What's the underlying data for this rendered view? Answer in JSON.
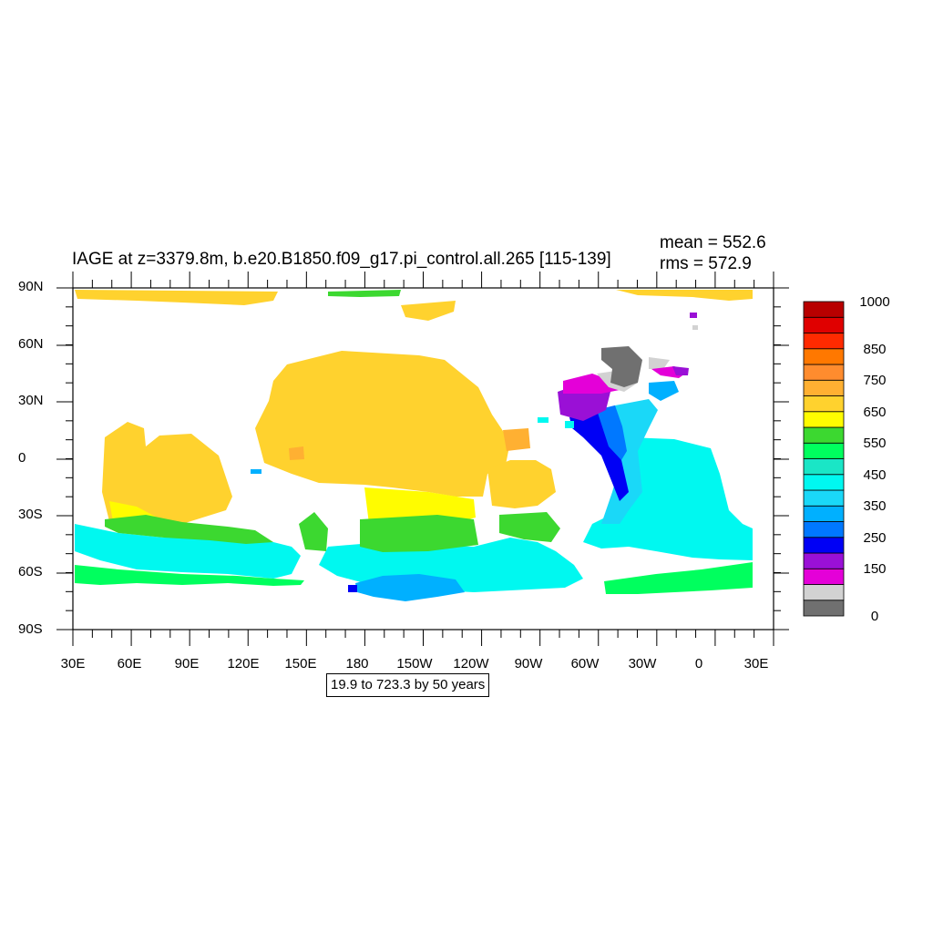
{
  "title": "IAGE at z=3379.8m, b.e20.B1850.f09_g17.pi_control.all.265 [115-139]",
  "stats": {
    "mean": "mean = 552.6",
    "rms": "rms = 572.9"
  },
  "subtitle_box": "19.9 to 723.3 by 50 years",
  "axes": {
    "lat_ticks": [
      "90N",
      "60N",
      "30N",
      "0",
      "30S",
      "60S",
      "90S"
    ],
    "lon_ticks": [
      "30E",
      "60E",
      "90E",
      "120E",
      "150E",
      "180",
      "150W",
      "120W",
      "90W",
      "60W",
      "30W",
      "0",
      "30E"
    ]
  },
  "colorbar": {
    "colors": [
      "#707070",
      "#d2d2d2",
      "#e400d8",
      "#9a10d6",
      "#0000f5",
      "#0078ff",
      "#00b0ff",
      "#1ad8f8",
      "#00f8f0",
      "#1ae6c6",
      "#00ff5e",
      "#3cd830",
      "#fffc00",
      "#ffd22e",
      "#ffb032",
      "#ff8c2e",
      "#ff7800",
      "#ff2a00",
      "#e00000",
      "#b80000"
    ],
    "labels": [
      "0",
      "150",
      "250",
      "350",
      "450",
      "550",
      "650",
      "750",
      "850",
      "1000"
    ]
  },
  "map": {
    "land_color": "#ffffff",
    "colors": {
      "dark_gray": "#707070",
      "light_gray": "#d2d2d2",
      "magenta": "#e400d8",
      "purple": "#9a10d6",
      "blue": "#0000f5",
      "mid_blue": "#0078ff",
      "sky": "#00b0ff",
      "light_cyan": "#1ad8f8",
      "cyan": "#00f8f0",
      "aqua": "#1ae6c6",
      "green": "#00ff5e",
      "lime": "#3cd830",
      "yellow": "#fffc00",
      "gold": "#ffd22e",
      "light_orange": "#ffb032",
      "orange": "#ff8c2e"
    }
  }
}
